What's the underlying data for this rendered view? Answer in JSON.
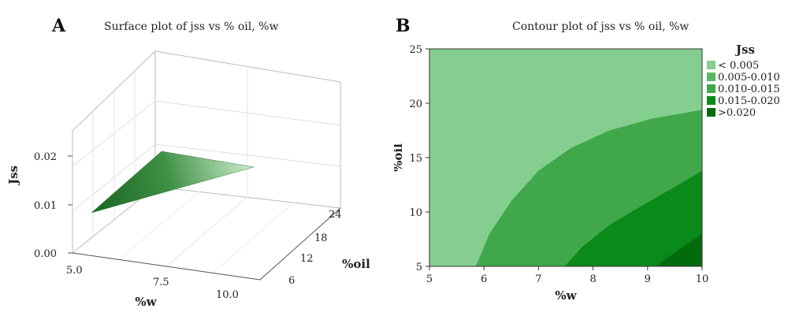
{
  "panels": {
    "a": {
      "letter": "A",
      "title": "Surface plot of jss vs % oil, %w"
    },
    "b": {
      "letter": "B",
      "title": "Contour plot of jss vs % oil, %w"
    }
  },
  "chart_data": [
    {
      "type": "surface",
      "title": "Surface plot of jss vs % oil, %w",
      "xlabel": "%w",
      "ylabel": "%oil",
      "zlabel": "Jss",
      "x_ticks": [
        "5.0",
        "7.5",
        "10.0"
      ],
      "y_ticks": [
        "6",
        "12",
        "18",
        "24"
      ],
      "z_ticks": [
        "0.00",
        "0.01",
        "0.02"
      ],
      "xlim": [
        5,
        10
      ],
      "ylim": [
        5,
        25
      ],
      "zlim": [
        0,
        0.025
      ],
      "surface_corners": [
        {
          "w": 5,
          "oil": 25,
          "jss": 0.008
        },
        {
          "w": 10,
          "oil": 5,
          "jss": 0.021
        },
        {
          "w": 10,
          "oil": 25,
          "jss": 0.008
        }
      ],
      "colors": {
        "dark": "#1e6b25",
        "light": "#cfeecf"
      }
    },
    {
      "type": "contour",
      "title": "Contour plot of jss vs % oil, %w",
      "xlabel": "%w",
      "ylabel": "%oil",
      "xlim": [
        5,
        10
      ],
      "ylim": [
        5,
        25
      ],
      "x_ticks": [
        5,
        6,
        7,
        8,
        9,
        10
      ],
      "y_ticks": [
        5,
        10,
        15,
        20,
        25
      ],
      "legend_title": "Jss",
      "legend_position": "right",
      "levels": [
        {
          "label": "< 0.005",
          "color": "#84cf90"
        },
        {
          "label": "0.005-0.010",
          "color": "#5ab868"
        },
        {
          "label": "0.010-0.015",
          "color": "#40a84b"
        },
        {
          "label": "0.015-0.020",
          "color": "#0a8a19"
        },
        {
          "label": ">0.020",
          "color": "#036b0e"
        }
      ],
      "boundaries": [
        [
          [
            5.85,
            5
          ],
          [
            6.1,
            8
          ],
          [
            6.5,
            11
          ],
          [
            7.0,
            13.8
          ],
          [
            7.6,
            15.9
          ],
          [
            8.3,
            17.5
          ],
          [
            9.1,
            18.6
          ],
          [
            10,
            19.4
          ]
        ],
        [
          [
            7.48,
            5
          ],
          [
            7.8,
            6.8
          ],
          [
            8.3,
            8.8
          ],
          [
            8.9,
            10.6
          ],
          [
            9.5,
            12.3
          ],
          [
            10,
            13.8
          ]
        ],
        [
          [
            9.15,
            5
          ],
          [
            9.5,
            6.3
          ],
          [
            10,
            8
          ]
        ]
      ]
    }
  ]
}
